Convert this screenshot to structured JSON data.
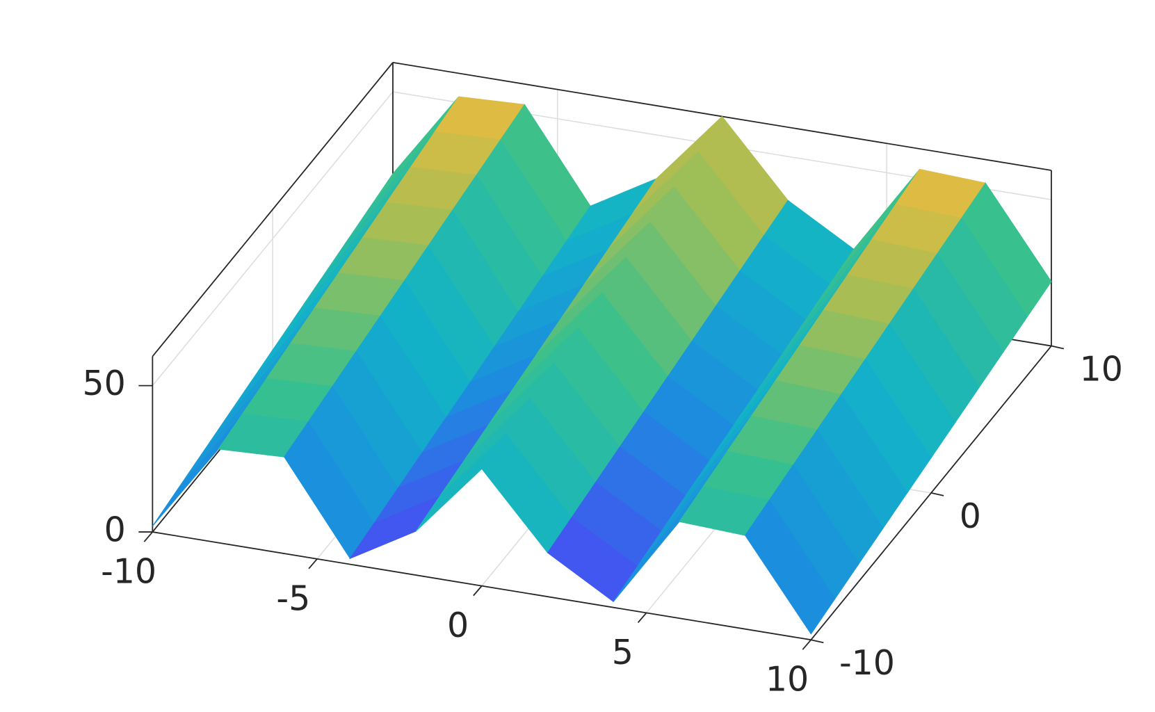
{
  "chart_data": {
    "type": "surface",
    "x": [
      -10,
      -8,
      -6,
      -4,
      -2,
      0,
      2,
      4,
      6,
      8,
      10
    ],
    "y": [
      -10,
      -8,
      -6,
      -4,
      -2,
      0,
      2,
      4,
      6,
      8,
      10
    ],
    "z": [
      [
        2,
        32,
        33,
        2,
        15,
        40,
        15,
        2,
        33,
        32,
        2
      ],
      [
        4,
        34,
        35,
        4,
        17,
        42,
        17,
        4,
        35,
        34,
        4
      ],
      [
        6,
        36,
        37,
        6,
        19,
        44,
        19,
        6,
        37,
        36,
        6
      ],
      [
        8,
        38,
        39,
        8,
        21,
        46,
        21,
        8,
        39,
        38,
        8
      ],
      [
        10,
        40,
        41,
        10,
        23,
        48,
        23,
        10,
        41,
        40,
        10
      ],
      [
        12,
        42,
        43,
        12,
        25,
        50,
        25,
        12,
        43,
        42,
        12
      ],
      [
        14,
        44,
        45,
        14,
        27,
        52,
        27,
        14,
        45,
        44,
        14
      ],
      [
        16,
        46,
        47,
        16,
        29,
        54,
        29,
        16,
        47,
        46,
        16
      ],
      [
        18,
        48,
        49,
        18,
        31,
        56,
        31,
        18,
        49,
        48,
        18
      ],
      [
        20,
        50,
        51,
        20,
        33,
        58,
        33,
        20,
        51,
        50,
        20
      ],
      [
        22,
        52,
        53,
        22,
        35,
        60,
        35,
        22,
        53,
        52,
        22
      ]
    ],
    "xlim": [
      -10,
      10
    ],
    "ylim": [
      -10,
      10
    ],
    "zlim": [
      0,
      60
    ],
    "xticks": [
      -10,
      -5,
      0,
      5,
      10
    ],
    "yticks": [
      -10,
      0,
      10
    ],
    "zticks": [
      0,
      50
    ],
    "colormap": "parula",
    "grid": true
  }
}
